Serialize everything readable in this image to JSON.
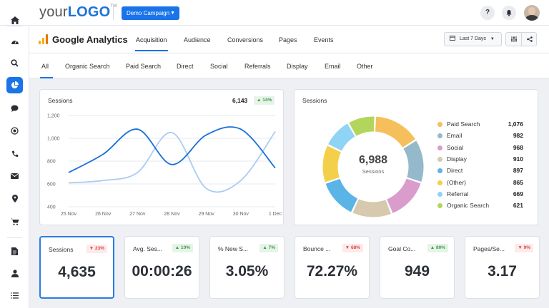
{
  "brand": {
    "logo_prefix": "your",
    "logo_strong": "LOGO",
    "logo_tm": "TM"
  },
  "campaign": {
    "label": "Demo Campaign",
    "caret": "▼"
  },
  "topbar_buttons": {
    "help": "?",
    "bell": "🔔"
  },
  "header": {
    "title": "Google Analytics",
    "tabs": [
      "Acquisition",
      "Audience",
      "Conversions",
      "Pages",
      "Events"
    ],
    "active_tab": "Acquisition",
    "date_range": "Last 7 Days",
    "date_caret": "▼"
  },
  "subtabs": [
    "All",
    "Organic Search",
    "Paid Search",
    "Direct",
    "Social",
    "Referrals",
    "Display",
    "Email",
    "Other"
  ],
  "line_card": {
    "title": "Sessions",
    "total": "6,143",
    "change": "▲ 14%",
    "chart_data": {
      "type": "line",
      "x": [
        "25 Nov",
        "26 Nov",
        "27 Nov",
        "28 Nov",
        "29 Nov",
        "30 Nov",
        "1 Dec"
      ],
      "ylim": [
        400,
        1200
      ],
      "yticks": [
        "1,200",
        "1,000",
        "800",
        "600",
        "400"
      ],
      "series": [
        {
          "color": "#1a6fd8",
          "values": [
            700,
            860,
            1080,
            770,
            1030,
            1080,
            740
          ]
        },
        {
          "color": "#a9cdf0",
          "values": [
            610,
            630,
            700,
            1050,
            560,
            630,
            1060
          ]
        }
      ]
    }
  },
  "donut_card": {
    "title": "Sessions",
    "center_value": "6,988",
    "center_label": "Sessions",
    "chart_data": {
      "type": "pie",
      "slices": [
        {
          "label": "Paid Search",
          "value": 1076,
          "display": "1,076",
          "color": "#f5bf5b"
        },
        {
          "label": "Email",
          "value": 982,
          "display": "982",
          "color": "#94b9cb"
        },
        {
          "label": "Social",
          "value": 968,
          "display": "968",
          "color": "#d99ccd"
        },
        {
          "label": "Display",
          "value": 910,
          "display": "910",
          "color": "#d6c9ad"
        },
        {
          "label": "Direct",
          "value": 897,
          "display": "897",
          "color": "#5ab4e5"
        },
        {
          "label": "(Other)",
          "value": 865,
          "display": "865",
          "color": "#f4cf4a"
        },
        {
          "label": "Referral",
          "value": 669,
          "display": "669",
          "color": "#8fd3f5"
        },
        {
          "label": "Organic Search",
          "value": 621,
          "display": "621",
          "color": "#b2d65b"
        }
      ]
    }
  },
  "metrics": [
    {
      "label": "Sessions",
      "change": "▼ 23%",
      "direction": "down",
      "value": "4,635"
    },
    {
      "label": "Avg. Ses...",
      "change": "▲ 10%",
      "direction": "up",
      "value": "00:00:26"
    },
    {
      "label": "% New S...",
      "change": "▲ 7%",
      "direction": "up",
      "value": "3.05%"
    },
    {
      "label": "Bounce ...",
      "change": "▼ 68%",
      "direction": "down",
      "value": "72.27%"
    },
    {
      "label": "Goal Co...",
      "change": "▲ 80%",
      "direction": "up",
      "value": "949"
    },
    {
      "label": "Pages/Se...",
      "change": "▼ 9%",
      "direction": "down",
      "value": "3.17"
    }
  ]
}
